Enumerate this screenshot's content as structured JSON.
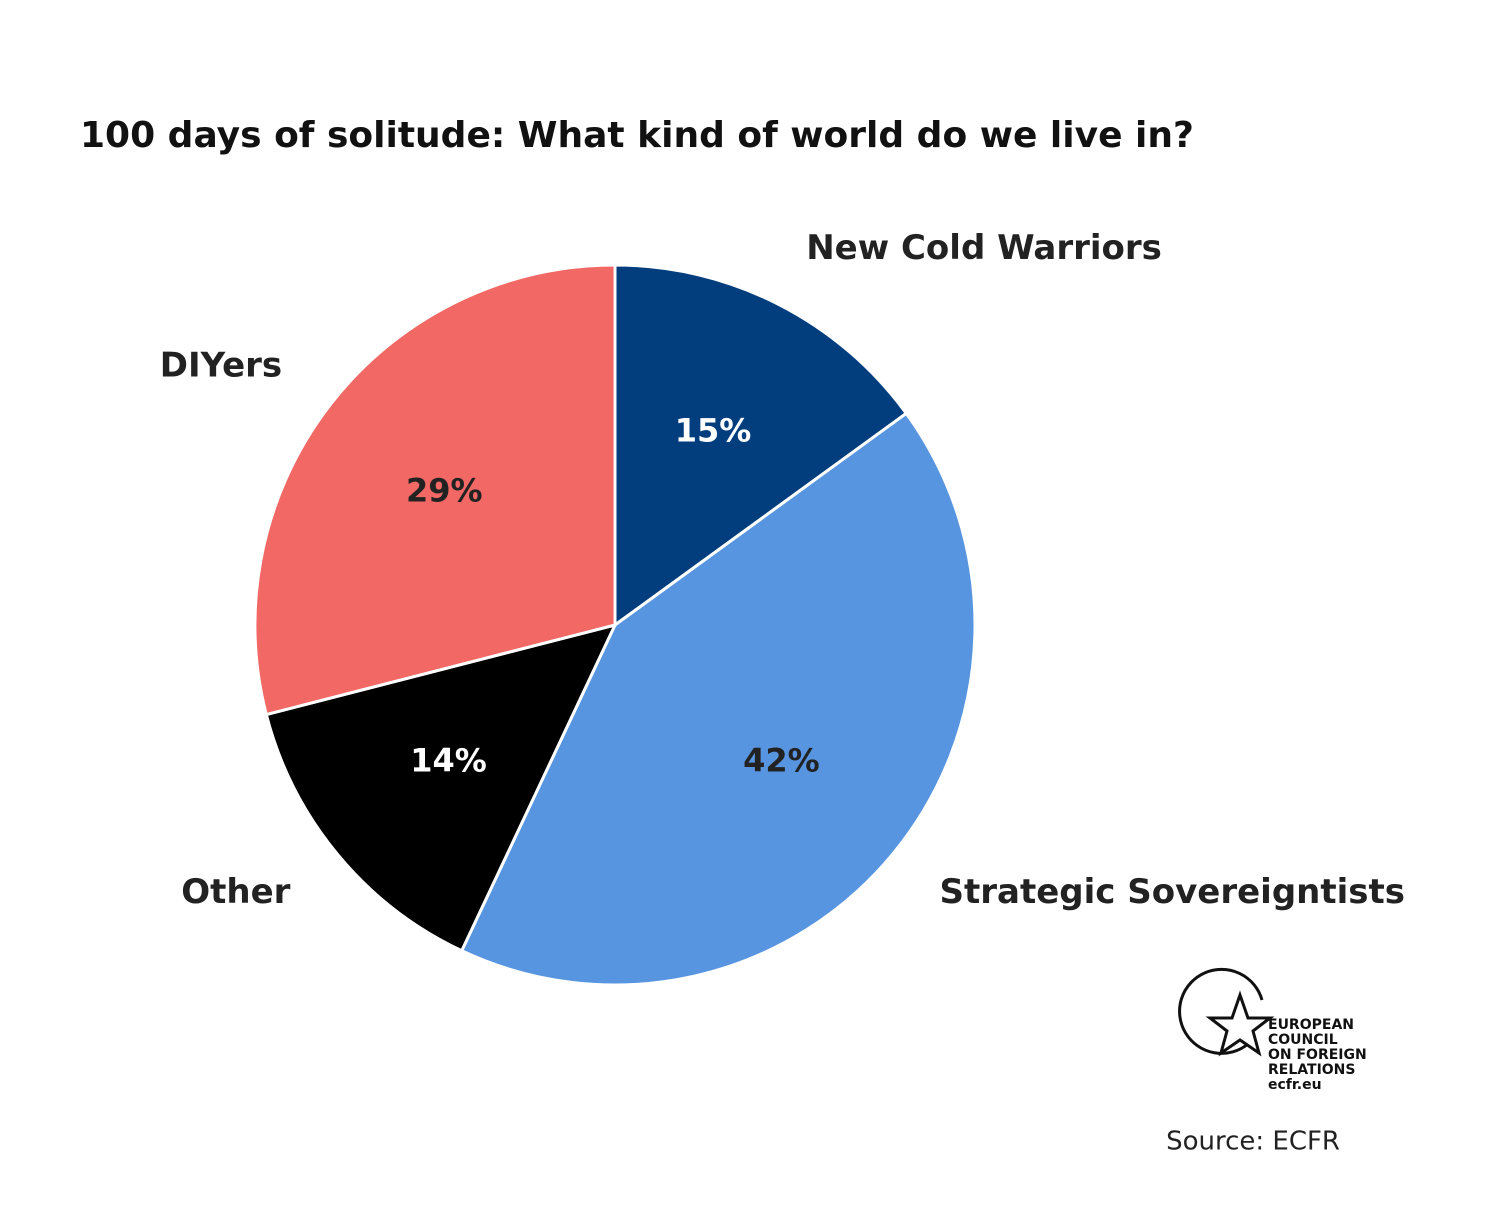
{
  "chart_data": {
    "type": "pie",
    "title": "100 days of solitude: What kind of world do we live in?",
    "categories": [
      "New Cold Warriors",
      "Strategic Sovereigntists",
      "Other",
      "DIYers"
    ],
    "values": [
      15,
      42,
      14,
      29
    ],
    "value_labels": [
      "15%",
      "42%",
      "14%",
      "29%"
    ],
    "colors": [
      "#023d7e",
      "#5795e0",
      "#000000",
      "#f16865"
    ],
    "logo": [
      "EUROPEAN",
      "COUNCIL",
      "ON FOREIGN",
      "RELATIONS",
      "ecfr.eu"
    ],
    "source": "Source: ECFR"
  }
}
